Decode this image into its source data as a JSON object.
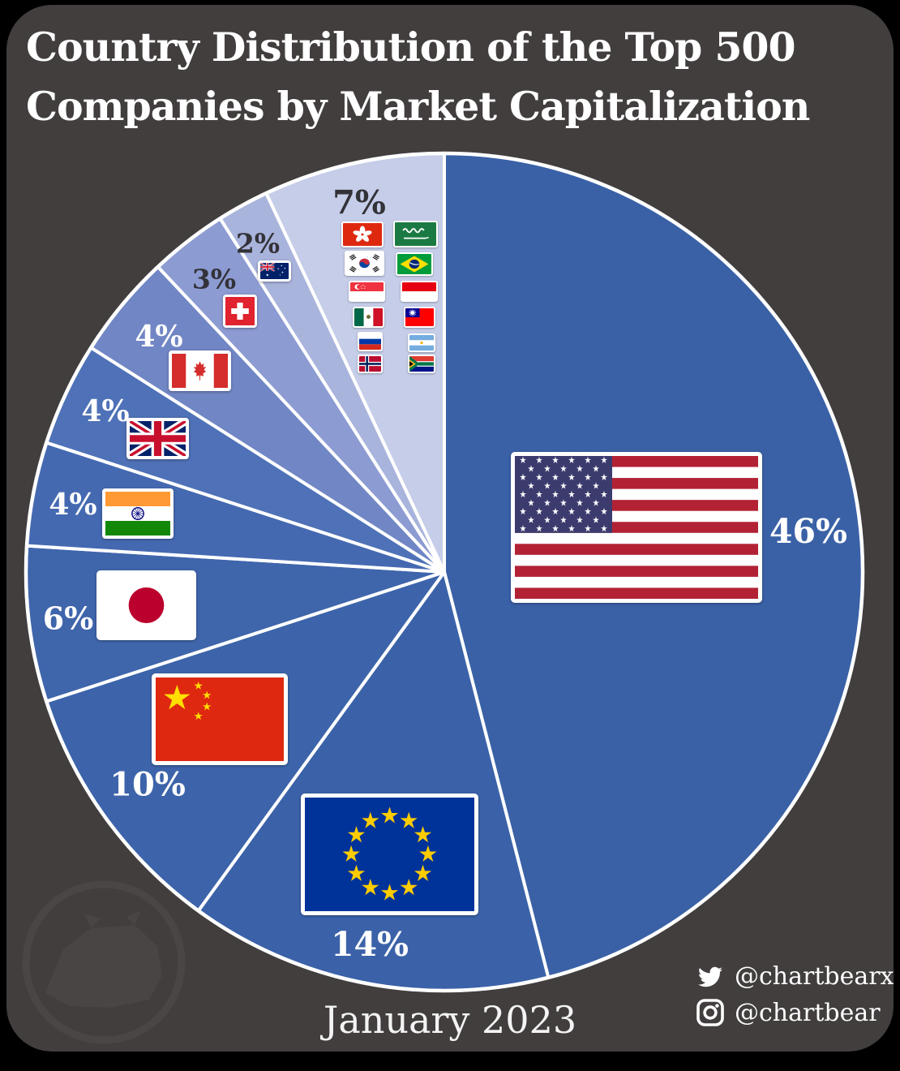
{
  "title": {
    "line1": "Country Distribution of the Top 500",
    "line2": "Companies by Market Capitalization"
  },
  "date_label": "January 2023",
  "social": {
    "twitter_icon": "twitter-bird-icon",
    "twitter_handle": "@chartbearx",
    "instagram_icon": "instagram-camera-icon",
    "instagram_handle": "@chartbear"
  },
  "watermark": "bear-logo-watermark",
  "colors": {
    "card_background": "#423E3E",
    "outer_background": "#000000",
    "slice_border": "#FFFFFF",
    "label_light": "#FFFFFF",
    "label_dark": "#333238"
  },
  "chart_data": {
    "type": "pie",
    "title": "Country Distribution of the Top 500 Companies by Market Capitalization",
    "date": "January 2023",
    "start_angle_deg": 0,
    "direction": "clockwise",
    "legend_position": "flags-on-slices",
    "slices": [
      {
        "label": "United States",
        "flag": "us",
        "value": 46,
        "value_label": "46%",
        "color": "#3A61A6",
        "label_color": "#FFFFFF"
      },
      {
        "label": "European Union",
        "flag": "eu",
        "value": 14,
        "value_label": "14%",
        "color": "#3B62A8",
        "label_color": "#FFFFFF"
      },
      {
        "label": "China",
        "flag": "cn",
        "value": 10,
        "value_label": "10%",
        "color": "#3D64AA",
        "label_color": "#FFFFFF"
      },
      {
        "label": "Japan",
        "flag": "jp",
        "value": 6,
        "value_label": "6%",
        "color": "#3F65AB",
        "label_color": "#FFFFFF"
      },
      {
        "label": "India",
        "flag": "in",
        "value": 4,
        "value_label": "4%",
        "color": "#4569B1",
        "label_color": "#FFFFFF"
      },
      {
        "label": "United Kingdom",
        "flag": "gb",
        "value": 4,
        "value_label": "4%",
        "color": "#4F71B7",
        "label_color": "#FFFFFF"
      },
      {
        "label": "Canada",
        "flag": "ca",
        "value": 4,
        "value_label": "4%",
        "color": "#7186C4",
        "label_color": "#FFFFFF"
      },
      {
        "label": "Switzerland",
        "flag": "ch",
        "value": 3,
        "value_label": "3%",
        "color": "#8C9BD2",
        "label_color": "#333238"
      },
      {
        "label": "Australia",
        "flag": "au",
        "value": 2,
        "value_label": "2%",
        "color": "#A9B4DC",
        "label_color": "#333238"
      },
      {
        "label": "Others",
        "value": 7,
        "value_label": "7%",
        "color": "#C5CDE8",
        "label_color": "#333238",
        "flags": [
          "hk",
          "sa",
          "kr",
          "br",
          "sg",
          "id",
          "mx",
          "tw",
          "ru",
          "ar",
          "no",
          "za"
        ],
        "flag_labels": [
          "Hong Kong",
          "Saudi Arabia",
          "South Korea",
          "Brazil",
          "Singapore",
          "Indonesia",
          "Mexico",
          "Taiwan",
          "Russia",
          "Argentina",
          "Norway",
          "South Africa"
        ]
      }
    ]
  }
}
